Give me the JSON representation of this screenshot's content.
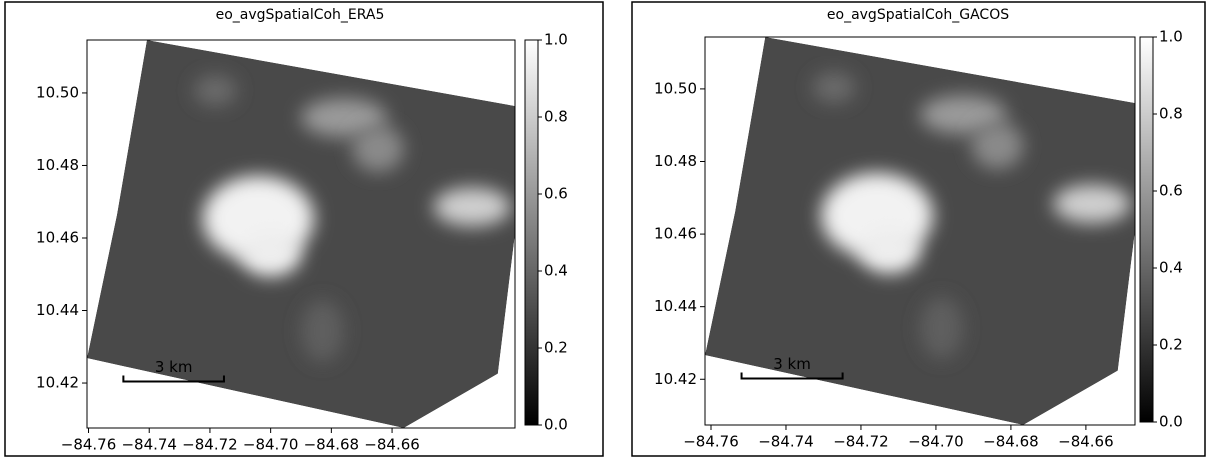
{
  "chart_data": [
    {
      "type": "image",
      "title": "eo_avgSpatialCoh_ERA5",
      "colormap": "gray",
      "xlim": [
        -84.7605,
        -84.6195
      ],
      "ylim": [
        10.4076,
        10.5146
      ],
      "xticks": [
        {
          "value": -84.76,
          "label": "−84.76"
        },
        {
          "value": -84.74,
          "label": "−84.74"
        },
        {
          "value": -84.72,
          "label": "−84.72"
        },
        {
          "value": -84.7,
          "label": "−84.70"
        },
        {
          "value": -84.68,
          "label": "−84.68"
        },
        {
          "value": -84.66,
          "label": "−84.66"
        }
      ],
      "yticks": [
        {
          "value": 10.42,
          "label": "10.42"
        },
        {
          "value": 10.44,
          "label": "10.44"
        },
        {
          "value": 10.46,
          "label": "10.46"
        },
        10.48,
        {
          "value": 10.5,
          "label": "10.50"
        }
      ],
      "clim": [
        0,
        1
      ],
      "cticks": [
        {
          "value": 0,
          "label": "0.0"
        },
        0.2,
        0.4,
        0.6,
        0.8,
        {
          "value": 1,
          "label": "1.0"
        }
      ],
      "scalebar_label": "3 km"
    },
    {
      "type": "image",
      "title": "eo_avgSpatialCoh_GACOS",
      "colormap": "gray",
      "xlim": [
        -84.7616,
        -84.6469
      ],
      "ylim": [
        10.4074,
        10.5143
      ],
      "xticks": [
        {
          "value": -84.76,
          "label": "−84.76"
        },
        {
          "value": -84.74,
          "label": "−84.74"
        },
        {
          "value": -84.72,
          "label": "−84.72"
        },
        {
          "value": -84.7,
          "label": "−84.70"
        },
        {
          "value": -84.68,
          "label": "−84.68"
        },
        {
          "value": -84.66,
          "label": "−84.66"
        }
      ],
      "yticks": [
        {
          "value": 10.42,
          "label": "10.42"
        },
        {
          "value": 10.44,
          "label": "10.44"
        },
        {
          "value": 10.46,
          "label": "10.46"
        },
        10.48,
        {
          "value": 10.5,
          "label": "10.50"
        }
      ],
      "clim": [
        0,
        1
      ],
      "cticks": [
        {
          "value": 0,
          "label": "0.0"
        },
        0.2,
        0.4,
        0.6,
        0.8,
        {
          "value": 1,
          "label": "1.0"
        }
      ],
      "scalebar_label": "3 km"
    }
  ]
}
